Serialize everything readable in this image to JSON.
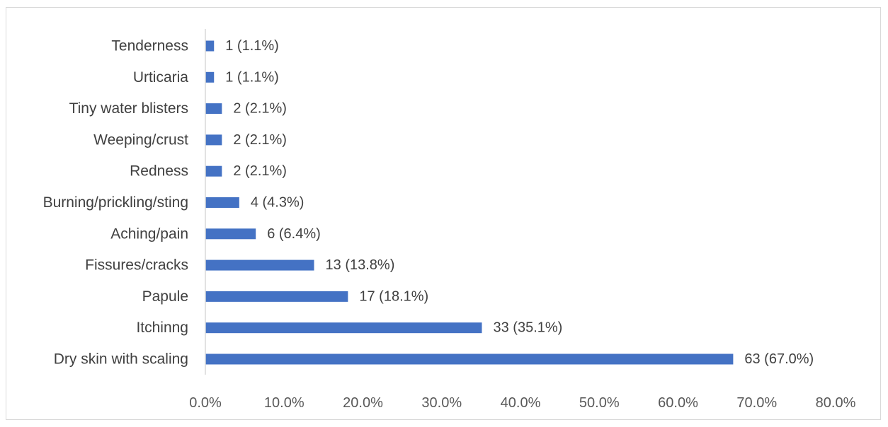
{
  "chart_data": {
    "type": "bar",
    "orientation": "horizontal",
    "categories": [
      "Dry skin with scaling",
      "Itchinng",
      "Papule",
      "Fissures/cracks",
      "Aching/pain",
      "Burning/prickling/sting",
      "Redness",
      "Weeping/crust",
      "Tiny water blisters",
      "Urticaria",
      "Tenderness"
    ],
    "values": [
      67.0,
      35.1,
      18.1,
      13.8,
      6.4,
      4.3,
      2.1,
      2.1,
      2.1,
      1.1,
      1.1
    ],
    "data_labels": [
      "63 (67.0%)",
      "33 (35.1%)",
      "17 (18.1%)",
      "13 (13.8%)",
      "6 (6.4%)",
      "4 (4.3%)",
      "2 (2.1%)",
      "2 (2.1%)",
      "2 (2.1%)",
      "1 (1.1%)",
      "1 (1.1%)"
    ],
    "xlim": [
      0,
      80
    ],
    "xticks": [
      0,
      10,
      20,
      30,
      40,
      50,
      60,
      70,
      80
    ],
    "xtick_labels": [
      "0.0%",
      "10.0%",
      "20.0%",
      "30.0%",
      "40.0%",
      "50.0%",
      "60.0%",
      "70.0%",
      "80.0%"
    ],
    "title": "",
    "xlabel": "",
    "ylabel": "",
    "grid": false,
    "legend": "none",
    "bar_color": "#4472c4",
    "axis_color": "#d9d9d9"
  }
}
